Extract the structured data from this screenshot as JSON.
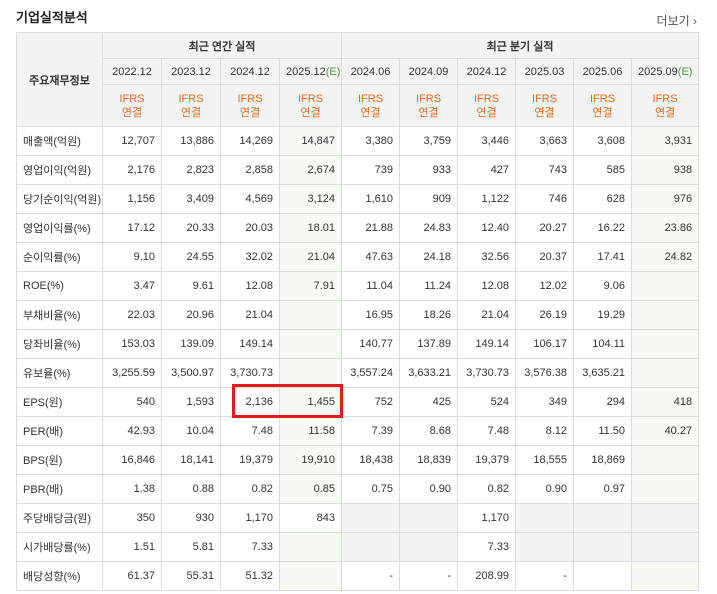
{
  "header": {
    "title": "기업실적분석",
    "more_label": "더보기"
  },
  "table": {
    "corner_label": "주요재무정보",
    "annual_group": "최근 연간 실적",
    "quarter_group": "최근 분기 실적",
    "ifrs_line1": "IFRS",
    "ifrs_line2": "연결",
    "periods": [
      {
        "label": "2022.12",
        "est": false
      },
      {
        "label": "2023.12",
        "est": false
      },
      {
        "label": "2024.12",
        "est": false
      },
      {
        "label": "2025.12",
        "est": true,
        "est_mark": "(E)"
      },
      {
        "label": "2024.06",
        "est": false
      },
      {
        "label": "2024.09",
        "est": false
      },
      {
        "label": "2024.12",
        "est": false
      },
      {
        "label": "2025.03",
        "est": false
      },
      {
        "label": "2025.06",
        "est": false
      },
      {
        "label": "2025.09",
        "est": true,
        "est_mark": "(E)"
      }
    ],
    "rows": [
      {
        "label": "매출액(억원)",
        "values": [
          "12,707",
          "13,886",
          "14,269",
          "14,847",
          "3,380",
          "3,759",
          "3,446",
          "3,663",
          "3,608",
          "3,931"
        ]
      },
      {
        "label": "영업이익(억원)",
        "values": [
          "2,176",
          "2,823",
          "2,858",
          "2,674",
          "739",
          "933",
          "427",
          "743",
          "585",
          "938"
        ]
      },
      {
        "label": "당기순이익(억원)",
        "values": [
          "1,156",
          "3,409",
          "4,569",
          "3,124",
          "1,610",
          "909",
          "1,122",
          "746",
          "628",
          "976"
        ]
      },
      {
        "label": "영업이익률(%)",
        "values": [
          "17.12",
          "20.33",
          "20.03",
          "18.01",
          "21.88",
          "24.83",
          "12.40",
          "20.27",
          "16.22",
          "23.86"
        ],
        "sep": true
      },
      {
        "label": "순이익률(%)",
        "values": [
          "9.10",
          "24.55",
          "32.02",
          "21.04",
          "47.63",
          "24.18",
          "32.56",
          "20.37",
          "17.41",
          "24.82"
        ]
      },
      {
        "label": "ROE(%)",
        "values": [
          "3.47",
          "9.61",
          "12.08",
          "7.91",
          "11.04",
          "11.24",
          "12.08",
          "12.02",
          "9.06",
          ""
        ]
      },
      {
        "label": "부채비율(%)",
        "values": [
          "22.03",
          "20.96",
          "21.04",
          "",
          "16.95",
          "18.26",
          "21.04",
          "26.19",
          "19.29",
          ""
        ],
        "sep": true
      },
      {
        "label": "당좌비율(%)",
        "values": [
          "153.03",
          "139.09",
          "149.14",
          "",
          "140.77",
          "137.89",
          "149.14",
          "106.17",
          "104.11",
          ""
        ]
      },
      {
        "label": "유보율(%)",
        "values": [
          "3,255.59",
          "3,500.97",
          "3,730.73",
          "",
          "3,557.24",
          "3,633.21",
          "3,730.73",
          "3,576.38",
          "3,635.21",
          ""
        ]
      },
      {
        "label": "EPS(원)",
        "values": [
          "540",
          "1,593",
          "2,136",
          "1,455",
          "752",
          "425",
          "524",
          "349",
          "294",
          "418"
        ],
        "sep": true
      },
      {
        "label": "PER(배)",
        "values": [
          "42.93",
          "10.04",
          "7.48",
          "11.58",
          "7.39",
          "8.68",
          "7.48",
          "8.12",
          "11.50",
          "40.27"
        ]
      },
      {
        "label": "BPS(원)",
        "values": [
          "16,846",
          "18,141",
          "19,379",
          "19,910",
          "18,438",
          "18,839",
          "19,379",
          "18,555",
          "18,869",
          ""
        ]
      },
      {
        "label": "PBR(배)",
        "values": [
          "1.38",
          "0.88",
          "0.82",
          "0.85",
          "0.75",
          "0.90",
          "0.82",
          "0.90",
          "0.97",
          ""
        ]
      },
      {
        "label": "주당배당금(원)",
        "values": [
          "350",
          "930",
          "1,170",
          "843",
          "",
          "",
          "1,170",
          "",
          "",
          ""
        ],
        "sep": true,
        "shade_quarters": true
      },
      {
        "label": "시가배당률(%)",
        "values": [
          "1.51",
          "5.81",
          "7.33",
          "",
          "",
          "",
          "7.33",
          "",
          "",
          ""
        ],
        "shade_quarters": true
      },
      {
        "label": "배당성향(%)",
        "values": [
          "61.37",
          "55.31",
          "51.32",
          "",
          "-",
          "-",
          "208.99",
          "-",
          "",
          ""
        ]
      }
    ]
  },
  "colors": {
    "ifrs": "#e46c1f",
    "estimate_mark": "#4a9b3a",
    "highlight_box": "#e01c1c"
  }
}
